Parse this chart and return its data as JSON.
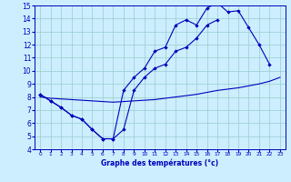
{
  "line1_x": [
    0,
    1,
    2,
    3,
    4,
    5,
    6,
    7,
    8,
    9,
    10,
    11,
    12,
    13,
    14,
    15,
    16,
    17,
    18,
    19,
    20,
    21,
    22
  ],
  "line1_y": [
    8.2,
    7.7,
    7.2,
    6.6,
    6.3,
    5.5,
    4.8,
    4.8,
    8.5,
    9.5,
    10.2,
    11.5,
    11.8,
    13.5,
    13.9,
    13.5,
    14.8,
    15.2,
    14.5,
    14.6,
    13.3,
    12.0,
    10.5
  ],
  "line2_x": [
    0,
    1,
    2,
    3,
    4,
    5,
    6,
    7,
    8,
    9,
    10,
    11,
    12,
    13,
    14,
    15,
    16,
    17
  ],
  "line2_y": [
    8.2,
    7.7,
    7.2,
    6.6,
    6.3,
    5.5,
    4.8,
    4.8,
    5.5,
    8.5,
    9.5,
    10.2,
    10.5,
    11.5,
    11.8,
    12.5,
    13.5,
    13.9
  ],
  "line3_x": [
    0,
    1,
    2,
    3,
    4,
    5,
    6,
    7,
    8,
    9,
    10,
    11,
    12,
    13,
    14,
    15,
    16,
    17,
    18,
    19,
    20,
    21,
    22,
    23
  ],
  "line3_y": [
    8.0,
    7.9,
    7.85,
    7.8,
    7.75,
    7.7,
    7.65,
    7.6,
    7.65,
    7.7,
    7.75,
    7.8,
    7.9,
    8.0,
    8.1,
    8.2,
    8.35,
    8.5,
    8.6,
    8.7,
    8.85,
    9.0,
    9.2,
    9.5
  ],
  "bg_color": "#cceeff",
  "line_color": "#0000bb",
  "xlabel": "Graphe des températures (°c)",
  "xlim": [
    -0.5,
    23.5
  ],
  "ylim": [
    4,
    15
  ],
  "yticks": [
    4,
    5,
    6,
    7,
    8,
    9,
    10,
    11,
    12,
    13,
    14,
    15
  ],
  "xticks": [
    0,
    1,
    2,
    3,
    4,
    5,
    6,
    7,
    8,
    9,
    10,
    11,
    12,
    13,
    14,
    15,
    16,
    17,
    18,
    19,
    20,
    21,
    22,
    23
  ],
  "grid_color": "#99cccc",
  "marker": "D",
  "markersize": 2.2,
  "linewidth": 0.8
}
